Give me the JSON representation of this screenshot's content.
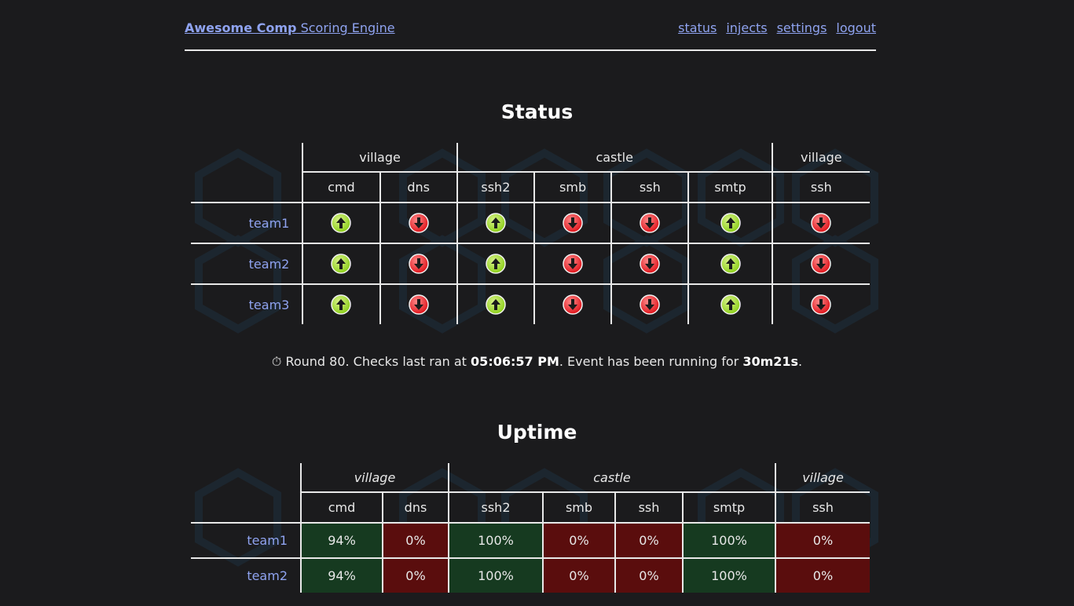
{
  "nav": {
    "brand_bold": "Awesome Comp",
    "brand_rest": " Scoring Engine",
    "links": [
      "status",
      "injects",
      "settings",
      "logout"
    ]
  },
  "status": {
    "title": "Status",
    "groups": [
      "village",
      "castle",
      "village"
    ],
    "services": [
      "cmd",
      "dns",
      "ssh2",
      "smb",
      "ssh",
      "smtp",
      "ssh"
    ],
    "rows": [
      {
        "team": "team1",
        "states": [
          "up",
          "down",
          "up",
          "down",
          "down",
          "up",
          "down"
        ]
      },
      {
        "team": "team2",
        "states": [
          "up",
          "down",
          "up",
          "down",
          "down",
          "up",
          "down"
        ]
      },
      {
        "team": "team3",
        "states": [
          "up",
          "down",
          "up",
          "down",
          "down",
          "up",
          "down"
        ]
      }
    ]
  },
  "round": {
    "icon": "stopwatch-icon",
    "prefix": "Round 80. Checks last ran at ",
    "time": "05:06:57 PM",
    "middle": ". Event has been running for ",
    "duration": "30m21s",
    "suffix": "."
  },
  "uptime": {
    "title": "Uptime",
    "groups": [
      "village",
      "castle",
      "village"
    ],
    "services": [
      "cmd",
      "dns",
      "ssh2",
      "smb",
      "ssh",
      "smtp",
      "ssh"
    ],
    "rows": [
      {
        "team": "team1",
        "values": [
          "94%",
          "0%",
          "100%",
          "0%",
          "0%",
          "100%",
          "0%"
        ]
      },
      {
        "team": "team2",
        "values": [
          "94%",
          "0%",
          "100%",
          "0%",
          "0%",
          "100%",
          "0%"
        ]
      }
    ]
  },
  "colors": {
    "up": "#8ccf1a",
    "down": "#e0141b",
    "link": "#8fa3f0",
    "background": "#1b1b1d"
  }
}
